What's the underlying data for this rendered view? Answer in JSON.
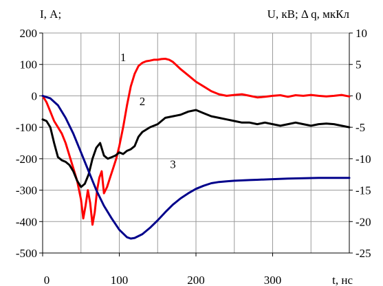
{
  "chart_data": {
    "type": "line",
    "title": "",
    "left_axis_label": "I, А;",
    "right_axis_label": "U, кВ; Δ q, мкКл",
    "x_axis_label": "t, нс",
    "xlim": [
      0,
      400
    ],
    "ylim_left": [
      -500,
      200
    ],
    "ylim_right": [
      -25,
      10
    ],
    "x_ticks": [
      "0",
      "100",
      "200",
      "300"
    ],
    "x_tick_values": [
      0,
      100,
      200,
      300
    ],
    "y_left_ticks": [
      "200",
      "100",
      "0",
      "-100",
      "-200",
      "-300",
      "-400",
      "-500"
    ],
    "y_left_tick_values": [
      200,
      100,
      0,
      -100,
      -200,
      -300,
      -400,
      -500
    ],
    "y_right_ticks": [
      "10",
      "5",
      "0",
      "-5",
      "-10",
      "-15",
      "-20",
      "-25"
    ],
    "grid": true,
    "series": [
      {
        "label": "1",
        "color": "#ff0000",
        "axis": "left",
        "x": [
          0,
          5,
          10,
          15,
          20,
          25,
          30,
          35,
          40,
          45,
          50,
          53,
          56,
          59,
          62,
          65,
          68,
          71,
          74,
          77,
          80,
          84,
          88,
          92,
          96,
          100,
          105,
          110,
          115,
          120,
          125,
          130,
          135,
          140,
          145,
          150,
          155,
          160,
          165,
          170,
          180,
          190,
          200,
          210,
          220,
          230,
          240,
          250,
          260,
          270,
          280,
          290,
          300,
          310,
          320,
          330,
          340,
          350,
          360,
          370,
          380,
          390,
          400
        ],
        "y": [
          0,
          -20,
          -50,
          -80,
          -100,
          -120,
          -150,
          -190,
          -230,
          -270,
          -330,
          -390,
          -350,
          -300,
          -340,
          -410,
          -370,
          -300,
          -260,
          -240,
          -310,
          -290,
          -260,
          -230,
          -200,
          -160,
          -100,
          -30,
          30,
          70,
          95,
          105,
          110,
          112,
          115,
          115,
          117,
          118,
          115,
          108,
          85,
          65,
          45,
          30,
          15,
          5,
          0,
          3,
          5,
          0,
          -5,
          -3,
          0,
          2,
          -3,
          2,
          0,
          3,
          0,
          -2,
          0,
          3,
          -2
        ]
      },
      {
        "label": "2",
        "color": "#000000",
        "axis": "left",
        "x": [
          0,
          5,
          10,
          15,
          20,
          25,
          30,
          35,
          40,
          45,
          50,
          55,
          60,
          65,
          70,
          75,
          80,
          85,
          90,
          95,
          100,
          105,
          110,
          115,
          120,
          125,
          130,
          140,
          150,
          160,
          170,
          180,
          190,
          200,
          210,
          220,
          230,
          240,
          250,
          260,
          270,
          280,
          290,
          300,
          310,
          320,
          330,
          340,
          350,
          360,
          370,
          380,
          390,
          400
        ],
        "y": [
          -75,
          -80,
          -100,
          -150,
          -195,
          -205,
          -210,
          -220,
          -240,
          -270,
          -290,
          -280,
          -250,
          -200,
          -165,
          -150,
          -190,
          -200,
          -195,
          -190,
          -180,
          -185,
          -175,
          -170,
          -160,
          -130,
          -115,
          -100,
          -90,
          -70,
          -65,
          -60,
          -50,
          -45,
          -55,
          -65,
          -70,
          -75,
          -80,
          -85,
          -85,
          -90,
          -85,
          -90,
          -95,
          -90,
          -85,
          -90,
          -95,
          -90,
          -88,
          -90,
          -95,
          -100
        ]
      },
      {
        "label": "3",
        "color": "#00008b",
        "axis": "right",
        "x": [
          0,
          10,
          20,
          30,
          40,
          50,
          60,
          70,
          80,
          90,
          100,
          110,
          115,
          120,
          130,
          140,
          150,
          160,
          170,
          180,
          190,
          200,
          210,
          220,
          230,
          240,
          250,
          260,
          270,
          280,
          300,
          320,
          340,
          360,
          380,
          400
        ],
        "y": [
          0,
          -0.4,
          -1.5,
          -3.5,
          -6,
          -9,
          -12,
          -15,
          -17.5,
          -19.5,
          -21.3,
          -22.5,
          -22.7,
          -22.6,
          -22.0,
          -21.0,
          -19.8,
          -18.5,
          -17.3,
          -16.3,
          -15.5,
          -14.8,
          -14.3,
          -13.9,
          -13.7,
          -13.6,
          -13.5,
          -13.45,
          -13.4,
          -13.35,
          -13.25,
          -13.15,
          -13.1,
          -13.05,
          -13.05,
          -13.05
        ]
      }
    ],
    "curve_label_positions": [
      {
        "label": "1",
        "x": 105,
        "y": 110
      },
      {
        "label": "2",
        "x": 130,
        "y": -30
      },
      {
        "label": "3",
        "x": 170,
        "y": -230
      }
    ]
  }
}
